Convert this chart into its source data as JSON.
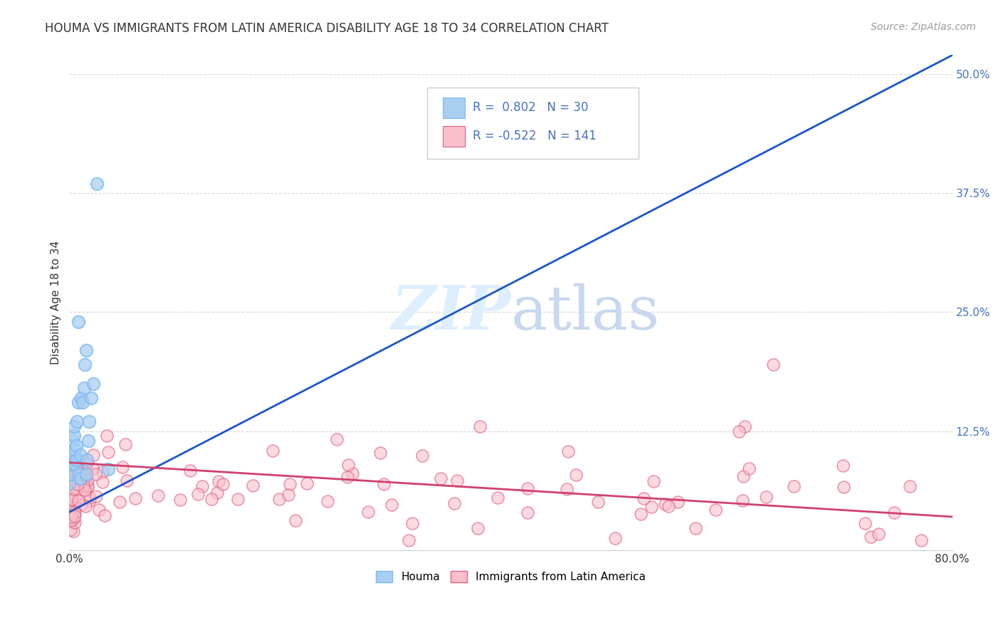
{
  "title": "HOUMA VS IMMIGRANTS FROM LATIN AMERICA DISABILITY AGE 18 TO 34 CORRELATION CHART",
  "source": "Source: ZipAtlas.com",
  "ylabel": "Disability Age 18 to 34",
  "xlim": [
    0.0,
    0.8
  ],
  "ylim": [
    0.0,
    0.52
  ],
  "houma_R": 0.802,
  "houma_N": 30,
  "latam_R": -0.522,
  "latam_N": 141,
  "houma_color": "#a8cff0",
  "houma_edge_color": "#7eb8f7",
  "houma_line_color": "#1a56cc",
  "latam_fill_color": "#f9c0cc",
  "latam_edge_color": "#e06080",
  "latam_line_color": "#d04070",
  "legend_label1": "Houma",
  "legend_label2": "Immigrants from Latin America",
  "background_color": "#ffffff",
  "grid_color": "#d8d8d8",
  "title_color": "#333333",
  "axis_color": "#333333",
  "right_tick_color": "#4472c4",
  "houma_line_start_x": 0.0,
  "houma_line_start_y": 0.04,
  "houma_line_end_x": 0.8,
  "houma_line_end_y": 0.52,
  "latam_line_start_x": 0.0,
  "latam_line_start_y": 0.092,
  "latam_line_end_x": 0.8,
  "latam_line_end_y": 0.035
}
